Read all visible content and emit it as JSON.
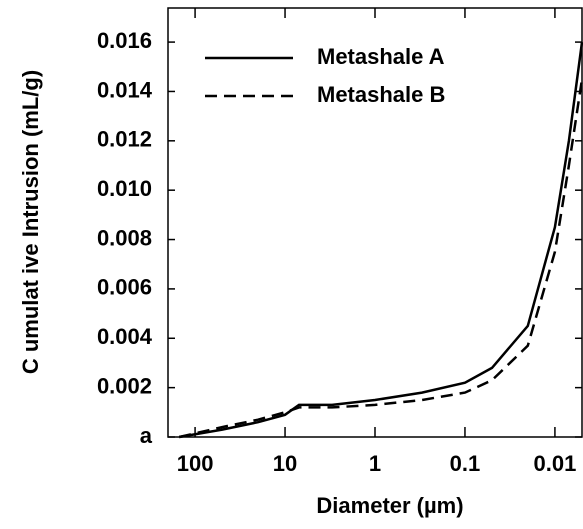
{
  "chart_data": {
    "type": "line",
    "xlabel": "Diameter (µm)",
    "ylabel": "C umulat ive Intrusion (mL/g)",
    "xscale": "log",
    "xlim": [
      200,
      0.005
    ],
    "xticks": [
      100,
      10,
      1,
      0.1,
      0.01
    ],
    "ylim": [
      0,
      0.0173
    ],
    "yticks": [
      {
        "value": 0,
        "label": "a"
      },
      0.002,
      0.004,
      0.006,
      0.008,
      {
        "value": 0.01,
        "label": "0.010"
      },
      0.012,
      0.014,
      0.016
    ],
    "legend": "upper left",
    "series": [
      {
        "name": "Metashale A",
        "color": "#000000",
        "dash": false,
        "x": [
          150,
          50,
          20,
          10,
          7,
          3,
          1,
          0.3,
          0.1,
          0.05,
          0.02,
          0.01,
          0.007,
          0.005
        ],
        "values": [
          0,
          0.0003,
          0.0006,
          0.0009,
          0.0013,
          0.0013,
          0.0015,
          0.0018,
          0.0022,
          0.0028,
          0.0045,
          0.0085,
          0.012,
          0.016
        ]
      },
      {
        "name": "Metashale B",
        "color": "#000000",
        "dash": true,
        "x": [
          150,
          50,
          20,
          10,
          7,
          3,
          1,
          0.3,
          0.1,
          0.05,
          0.02,
          0.01,
          0.007,
          0.005
        ],
        "values": [
          0,
          0.0004,
          0.0007,
          0.001,
          0.0012,
          0.0012,
          0.0013,
          0.0015,
          0.0018,
          0.0023,
          0.0037,
          0.0075,
          0.011,
          0.0145
        ]
      }
    ]
  }
}
